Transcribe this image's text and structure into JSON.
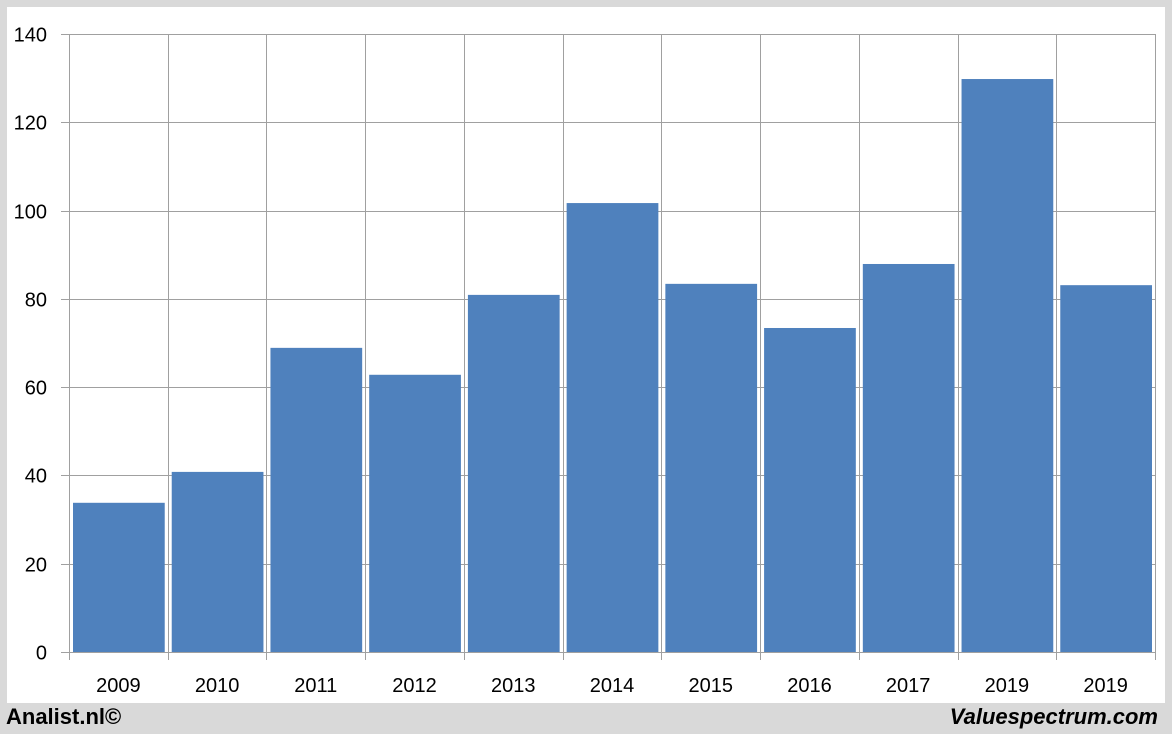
{
  "chart_data": {
    "type": "bar",
    "categories": [
      "2009",
      "2010",
      "2011",
      "2012",
      "2013",
      "2014",
      "2015",
      "2016",
      "2017",
      "2019",
      "2019"
    ],
    "values": [
      33.8,
      40.8,
      68.9,
      62.8,
      80.9,
      101.7,
      83.4,
      73.4,
      87.9,
      129.8,
      83.1
    ],
    "ylim": [
      0,
      140
    ],
    "yticks": [
      "0",
      "20",
      "40",
      "60",
      "80",
      "100",
      "120",
      "140"
    ],
    "grid": true,
    "bar_color": "#4f81bd",
    "grid_color": "#a0a0a0"
  },
  "footer": {
    "left": "Analist.nl©",
    "right": "Valuespectrum.com"
  }
}
